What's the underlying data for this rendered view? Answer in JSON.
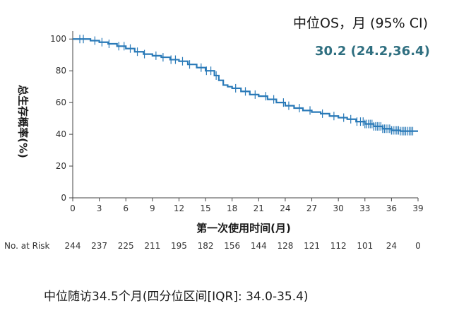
{
  "legend": {
    "title": "中位OS，月 (95% CI)",
    "value": "30.2 (24.2,36.4)"
  },
  "footnote": "中位随访34.5个月(四分位区间[IQR]: 34.0-35.4)",
  "risk_table": {
    "label": "No. at Risk",
    "values": [
      "244",
      "237",
      "225",
      "211",
      "195",
      "182",
      "156",
      "144",
      "128",
      "121",
      "112",
      "101",
      "24",
      "0"
    ]
  },
  "colors": {
    "curve": "#2a7ab8",
    "highlight": "#2f6f80"
  },
  "chart_data": {
    "type": "line",
    "title": "",
    "xlabel": "第一次使用时间(月)",
    "ylabel": "总生存概率(%)",
    "xlim": [
      0,
      39
    ],
    "ylim": [
      0,
      105
    ],
    "xticks": [
      0,
      3,
      6,
      9,
      12,
      15,
      18,
      21,
      24,
      27,
      30,
      33,
      36,
      39
    ],
    "yticks": [
      0,
      20,
      40,
      60,
      80,
      100
    ],
    "series": [
      {
        "x": [
          0,
          1,
          2,
          3,
          4,
          5,
          6,
          7,
          8,
          9,
          10,
          11,
          12,
          13,
          14,
          15,
          16,
          16.5,
          17,
          17.5,
          18,
          19,
          20,
          21,
          22,
          23,
          24,
          25,
          26,
          27,
          28,
          29,
          30,
          31,
          32,
          33,
          34,
          35,
          36,
          37,
          38,
          39
        ],
        "y": [
          100,
          100,
          99,
          98,
          97,
          95.5,
          94,
          92,
          90.5,
          89.5,
          88.5,
          87,
          86,
          84,
          82,
          80,
          77,
          74,
          71,
          70,
          69,
          67,
          65,
          64,
          62,
          60,
          58,
          56.5,
          55,
          54,
          53,
          51.5,
          50.5,
          49.5,
          48,
          46.5,
          45,
          43.5,
          42.5,
          42,
          42,
          42
        ]
      }
    ],
    "censor_x": [
      0.8,
      1.2,
      2.5,
      3.3,
      4.1,
      5.2,
      5.8,
      6.5,
      7.3,
      8.1,
      9.4,
      10.2,
      11.1,
      11.6,
      12.4,
      13.2,
      14.5,
      15.1,
      15.6,
      16.2,
      18.4,
      19.5,
      20.6,
      21.8,
      22.7,
      23.8,
      24.4,
      25.6,
      26.8,
      28.2,
      29.5,
      30.6,
      31.4,
      32.1,
      32.5,
      32.8,
      33.0,
      33.2,
      33.4,
      33.6,
      33.8,
      34.0,
      34.2,
      34.4,
      34.6,
      34.8,
      35.0,
      35.2,
      35.4,
      35.6,
      35.8,
      36.0,
      36.2,
      36.4,
      36.6,
      36.8,
      37.0,
      37.2,
      37.4,
      37.6,
      37.8,
      38.0,
      38.2,
      38.4
    ]
  }
}
